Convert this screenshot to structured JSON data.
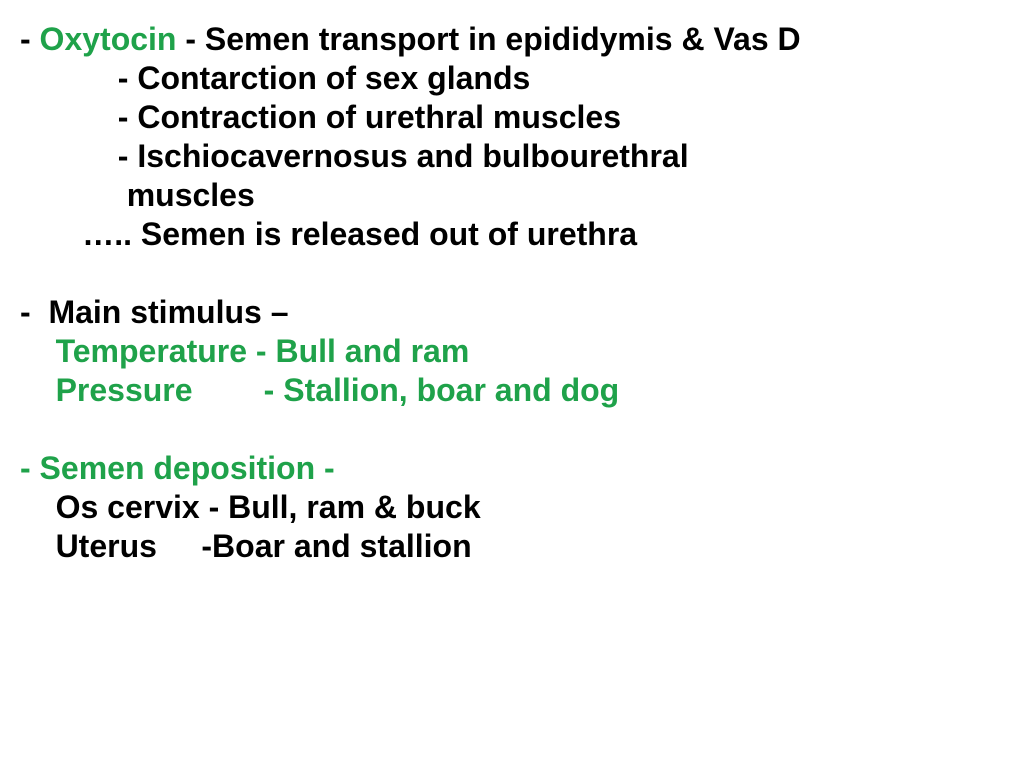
{
  "font_size": 32,
  "line_height": 1.22,
  "colors": {
    "green": "#1fa24a",
    "black": "#000000",
    "bg": "#ffffff"
  },
  "lines": [
    {
      "indent": 0,
      "segments": [
        {
          "text": "- ",
          "color": "black"
        },
        {
          "text": "Oxytocin ",
          "color": "green"
        },
        {
          "text": "- Semen transport in epididymis & Vas D",
          "color": "black"
        }
      ]
    },
    {
      "indent": 11,
      "segments": [
        {
          "text": "- Contarction of sex glands",
          "color": "black"
        }
      ]
    },
    {
      "indent": 11,
      "segments": [
        {
          "text": "- Contraction of urethral muscles",
          "color": "black"
        }
      ]
    },
    {
      "indent": 11,
      "segments": [
        {
          "text": "- Ischiocavernosus and bulbourethral",
          "color": "black"
        }
      ]
    },
    {
      "indent": 12,
      "segments": [
        {
          "text": "muscles",
          "color": "black"
        }
      ]
    },
    {
      "indent": 7,
      "segments": [
        {
          "text": "….. Semen is released out of urethra",
          "color": "black"
        }
      ]
    },
    {
      "indent": 0,
      "segments": [
        {
          "text": "",
          "color": "black"
        }
      ]
    },
    {
      "indent": 0,
      "segments": [
        {
          "text": "-  Main stimulus –",
          "color": "black"
        }
      ]
    },
    {
      "indent": 4,
      "segments": [
        {
          "text": "Temperature - Bull and ram",
          "color": "green"
        }
      ]
    },
    {
      "indent": 4,
      "segments": [
        {
          "text": "Pressure        - Stallion, boar and dog",
          "color": "green"
        }
      ]
    },
    {
      "indent": 0,
      "segments": [
        {
          "text": "",
          "color": "black"
        }
      ]
    },
    {
      "indent": 0,
      "segments": [
        {
          "text": "- Semen deposition -",
          "color": "green"
        }
      ]
    },
    {
      "indent": 4,
      "segments": [
        {
          "text": "Os cervix - Bull, ram & buck",
          "color": "black"
        }
      ]
    },
    {
      "indent": 4,
      "segments": [
        {
          "text": "Uterus     -Boar and stallion",
          "color": "black"
        }
      ]
    }
  ]
}
